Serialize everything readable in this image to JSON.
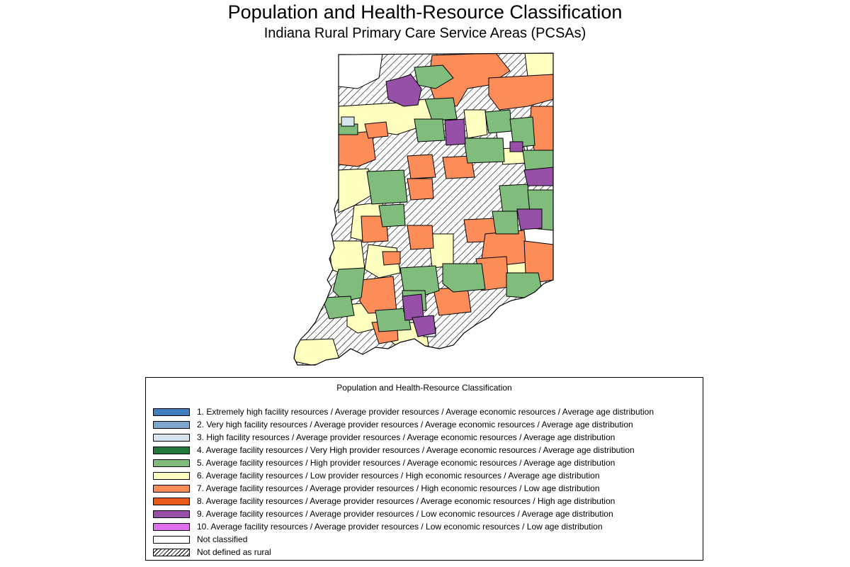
{
  "title": "Population and Health-Resource Classification",
  "subtitle": "Indiana Rural Primary Care Service Areas (PCSAs)",
  "legend": {
    "title": "Population and Health-Resource Classification",
    "items": [
      {
        "label": "1. Extremely high facility resources / Average provider resources / Average economic resources / Average age distribution",
        "color": "#3f7fbf"
      },
      {
        "label": "2. Very high facility resources / Average provider resources / Average economic resources / Average age distribution",
        "color": "#7fa6cc"
      },
      {
        "label": "3. High facility resources / Average provider resources / Average economic resources / Average age distribution",
        "color": "#d6e4ef"
      },
      {
        "label": "4. Average facility resources / Very High provider resources / Average economic resources / Average age distribution",
        "color": "#217a3c"
      },
      {
        "label": "5. Average facility resources / High provider resources / Average economic resources / Average age distribution",
        "color": "#80bd7d"
      },
      {
        "label": "6. Average facility resources / Low provider resources / High economic resources / Average age distribution",
        "color": "#ffffc0"
      },
      {
        "label": "7. Average facility resources / Average provider resources / High economic resources / Low age distribution",
        "color": "#fd8d58"
      },
      {
        "label": "8. Average facility resources / Average provider resources / Average economic resources / High age distribution",
        "color": "#ea5b17"
      },
      {
        "label": "9. Average facility resources / Average provider resources / Low economic resources / Average age distribution",
        "color": "#9650a8"
      },
      {
        "label": "10. Average facility resources / Average provider resources / Low economic resources / Low age distribution",
        "color": "#e06ff0"
      },
      {
        "label": "Not classified",
        "color": "#ffffff"
      },
      {
        "label": "Not defined as rural",
        "color": "hatch"
      }
    ]
  }
}
